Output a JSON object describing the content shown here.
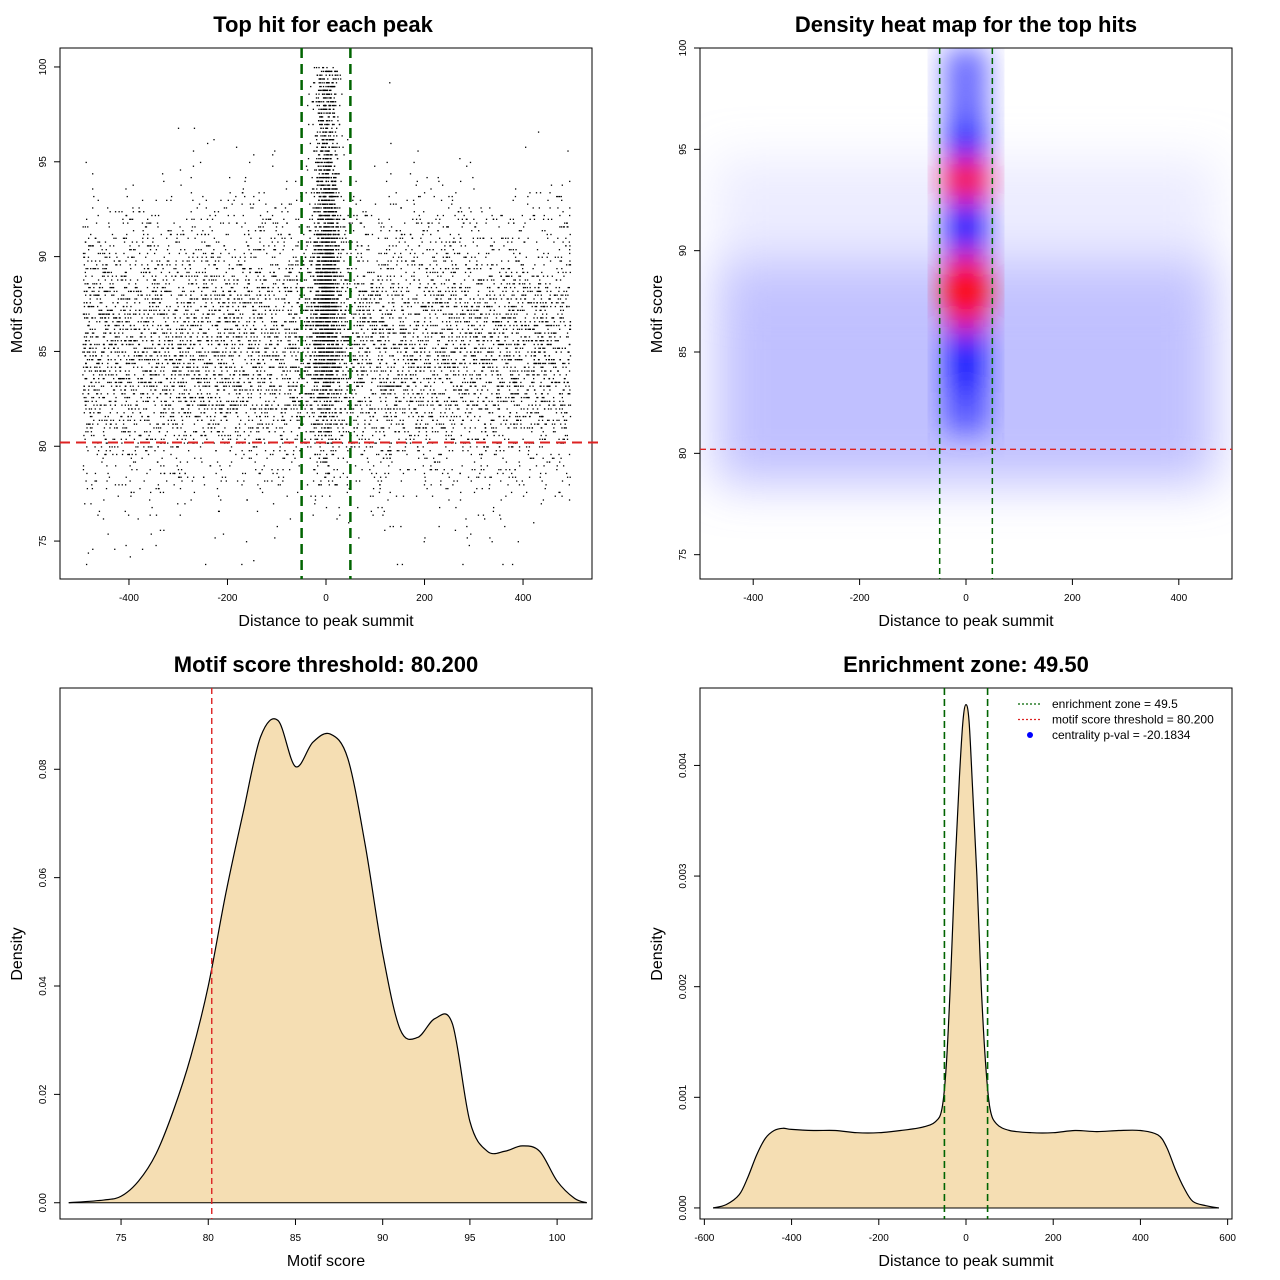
{
  "colors": {
    "threshold": "#dd2222",
    "zone": "#006400",
    "fill": "#f5deb3",
    "centrality": "#0000ff"
  },
  "chart_data": [
    {
      "type": "scatter",
      "title": "Top hit for each peak",
      "xlabel": "Distance to peak summit",
      "ylabel": "Motif score",
      "xlim": [
        -540,
        540
      ],
      "ylim": [
        73,
        101
      ],
      "xticks": [
        -400,
        -200,
        0,
        200,
        400
      ],
      "yticks": [
        75,
        80,
        85,
        90,
        95,
        100
      ],
      "x_range_points": [
        -495,
        495
      ],
      "score_threshold": 80.2,
      "enrichment_zone": [
        -49.5,
        49.5
      ],
      "distribution": "uniform background over x with scores centered near 83-88; dense column of hits within +/-49.5 of summit reaching scores up to 100"
    },
    {
      "type": "heatmap",
      "title": "Density heat map for the top hits",
      "xlabel": "Distance to peak summit",
      "ylabel": "Motif score",
      "xlim": [
        -500,
        500
      ],
      "ylim": [
        73.8,
        100
      ],
      "xticks": [
        -400,
        -200,
        0,
        200,
        400
      ],
      "yticks": [
        75,
        80,
        85,
        90,
        95,
        100
      ],
      "score_threshold": 80.2,
      "enrichment_zone": [
        -49.5,
        49.5
      ],
      "hotspots": [
        {
          "x": 0,
          "y": 88,
          "level": "high"
        },
        {
          "x": 0,
          "y": 93.5,
          "level": "high"
        },
        {
          "x": 0,
          "y": 98.5,
          "level": "low"
        }
      ],
      "background_band": {
        "y": 83.5,
        "level": "low"
      },
      "colors": [
        "white",
        "blue",
        "red"
      ]
    },
    {
      "type": "area",
      "title": "Motif score threshold: 80.200",
      "xlabel": "Motif score",
      "ylabel": "Density",
      "xlim": [
        71.5,
        102
      ],
      "ylim": [
        -0.003,
        0.095
      ],
      "xticks": [
        75,
        80,
        85,
        90,
        95,
        100
      ],
      "yticks": [
        0.0,
        0.02,
        0.04,
        0.06,
        0.08
      ],
      "ytick_labels": [
        "0.00",
        "0.02",
        "0.04",
        "0.06",
        "0.08"
      ],
      "threshold": 80.2,
      "x": [
        72,
        74,
        75,
        76,
        77,
        78,
        79,
        80,
        81,
        82,
        83,
        84,
        85,
        86,
        87,
        88,
        89,
        90,
        91,
        92,
        93,
        94,
        95,
        96,
        97,
        98,
        99,
        100,
        101,
        101.7
      ],
      "y": [
        0.0,
        0.0005,
        0.0012,
        0.004,
        0.009,
        0.017,
        0.027,
        0.04,
        0.057,
        0.072,
        0.086,
        0.089,
        0.0805,
        0.085,
        0.0865,
        0.082,
        0.066,
        0.046,
        0.032,
        0.0305,
        0.034,
        0.033,
        0.015,
        0.0095,
        0.0095,
        0.0105,
        0.0095,
        0.004,
        0.0008,
        0.0
      ]
    },
    {
      "type": "area",
      "title": "Enrichment zone: 49.50",
      "xlabel": "Distance to peak summit",
      "ylabel": "Density",
      "xlim": [
        -610,
        610
      ],
      "ylim": [
        -0.0001,
        0.0047
      ],
      "xticks": [
        -600,
        -400,
        -200,
        0,
        200,
        400,
        600
      ],
      "yticks": [
        0.0,
        0.001,
        0.002,
        0.003,
        0.004
      ],
      "ytick_labels": [
        "0.000",
        "0.001",
        "0.002",
        "0.003",
        "0.004"
      ],
      "enrichment_zone": [
        -49.5,
        49.5
      ],
      "x": [
        -580,
        -550,
        -520,
        -500,
        -480,
        -460,
        -440,
        -420,
        -400,
        -350,
        -300,
        -250,
        -200,
        -150,
        -100,
        -70,
        -55,
        -45,
        -35,
        -25,
        -15,
        -7,
        0,
        7,
        15,
        25,
        35,
        45,
        55,
        70,
        100,
        150,
        200,
        250,
        300,
        350,
        400,
        440,
        460,
        480,
        500,
        520,
        550,
        580
      ],
      "y": [
        0.0,
        3e-05,
        0.00012,
        0.00028,
        0.00048,
        0.00063,
        0.0007,
        0.00072,
        0.00071,
        0.0007,
        0.0007,
        0.00068,
        0.00068,
        0.0007,
        0.00073,
        0.00078,
        0.0009,
        0.0013,
        0.0021,
        0.0031,
        0.0039,
        0.0044,
        0.00455,
        0.0044,
        0.0038,
        0.003,
        0.002,
        0.0013,
        0.0009,
        0.00076,
        0.0007,
        0.00068,
        0.00068,
        0.0007,
        0.00069,
        0.0007,
        0.0007,
        0.00066,
        0.00055,
        0.00035,
        0.00018,
        6e-05,
        2e-05,
        0.0
      ],
      "legend": [
        {
          "label": "enrichment zone = 49.5",
          "style": "dotted",
          "color": "#006400"
        },
        {
          "label": "motif score threshold = 80.200",
          "style": "dotted",
          "color": "#dd2222"
        },
        {
          "label": "centrality p-val = -20.1834",
          "style": "point",
          "color": "#0000ff"
        }
      ],
      "legend_position": "top-right"
    }
  ]
}
